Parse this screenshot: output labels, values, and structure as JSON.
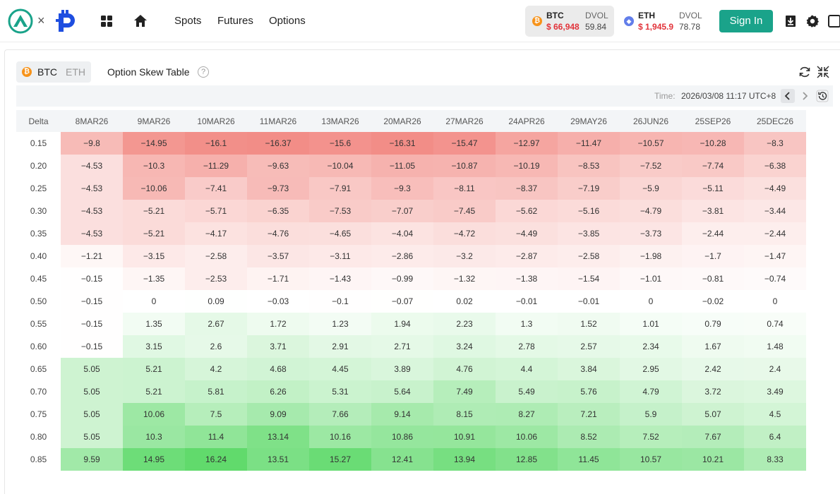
{
  "nav": {
    "logo_separator": "×",
    "links": [
      "Spots",
      "Futures",
      "Options"
    ],
    "sign_in": "Sign In"
  },
  "tickers": [
    {
      "symbol": "BTC",
      "price": "$ 66,948",
      "dvol_label": "DVOL",
      "dvol": "59.84",
      "coin_color": "#f7931a",
      "coin_glyph": "₿"
    },
    {
      "symbol": "ETH",
      "price": "$ 1,945.9",
      "dvol_label": "DVOL",
      "dvol": "78.78",
      "coin_color": "#627eea",
      "coin_glyph": "◆"
    }
  ],
  "panel": {
    "coin_active": "BTC",
    "coin_inactive": "ETH",
    "title": "Option Skew Table",
    "help_glyph": "?",
    "time_label": "Time:",
    "time_value": "2026/03/08 11:17 UTC+8"
  },
  "colors": {
    "brand": "#1aa38a",
    "price_red": "#e2333a",
    "neg_heat": "#f28c86",
    "pos_heat": "#5ed96a"
  },
  "table": {
    "corner": "Delta",
    "expiries": [
      "8MAR26",
      "9MAR26",
      "10MAR26",
      "11MAR26",
      "13MAR26",
      "20MAR26",
      "27MAR26",
      "24APR26",
      "29MAY26",
      "26JUN26",
      "25SEP26",
      "25DEC26"
    ],
    "rows": [
      {
        "delta": "0.15",
        "values": [
          -9.8,
          -14.95,
          -16.1,
          -16.37,
          -15.6,
          -16.31,
          -15.47,
          -12.97,
          -11.47,
          -10.57,
          -10.28,
          -8.3
        ]
      },
      {
        "delta": "0.20",
        "values": [
          -4.53,
          -10.3,
          -11.29,
          -9.63,
          -10.04,
          -11.05,
          -10.87,
          -10.19,
          -8.53,
          -7.52,
          -7.74,
          -6.38
        ]
      },
      {
        "delta": "0.25",
        "values": [
          -4.53,
          -10.06,
          -7.41,
          -9.73,
          -7.91,
          -9.3,
          -8.11,
          -8.37,
          -7.19,
          -5.9,
          -5.11,
          -4.49
        ]
      },
      {
        "delta": "0.30",
        "values": [
          -4.53,
          -5.21,
          -5.71,
          -6.35,
          -7.53,
          -7.07,
          -7.45,
          -5.62,
          -5.16,
          -4.79,
          -3.81,
          -3.44
        ]
      },
      {
        "delta": "0.35",
        "values": [
          -4.53,
          -5.21,
          -4.17,
          -4.76,
          -4.65,
          -4.04,
          -4.72,
          -4.49,
          -3.85,
          -3.73,
          -2.44,
          -2.44
        ]
      },
      {
        "delta": "0.40",
        "values": [
          -1.21,
          -3.15,
          -2.58,
          -3.57,
          -3.11,
          -2.86,
          -3.2,
          -2.87,
          -2.58,
          -1.98,
          -1.7,
          -1.47
        ]
      },
      {
        "delta": "0.45",
        "values": [
          -0.15,
          -1.35,
          -2.53,
          -1.71,
          -1.43,
          -0.99,
          -1.32,
          -1.38,
          -1.54,
          -1.01,
          -0.81,
          -0.74
        ]
      },
      {
        "delta": "0.50",
        "values": [
          -0.15,
          0,
          0.09,
          -0.03,
          -0.1,
          -0.07,
          0.02,
          -0.01,
          -0.01,
          0,
          -0.02,
          0
        ]
      },
      {
        "delta": "0.55",
        "values": [
          -0.15,
          1.35,
          2.67,
          1.72,
          1.23,
          1.94,
          2.23,
          1.3,
          1.52,
          1.01,
          0.79,
          0.74
        ]
      },
      {
        "delta": "0.60",
        "values": [
          -0.15,
          3.15,
          2.6,
          3.71,
          2.91,
          2.71,
          3.24,
          2.78,
          2.57,
          2.34,
          1.67,
          1.48
        ]
      },
      {
        "delta": "0.65",
        "values": [
          5.05,
          5.21,
          4.2,
          4.68,
          4.45,
          3.89,
          4.76,
          4.4,
          3.84,
          2.95,
          2.42,
          2.4
        ]
      },
      {
        "delta": "0.70",
        "values": [
          5.05,
          5.21,
          5.81,
          6.26,
          5.31,
          5.64,
          7.49,
          5.49,
          5.76,
          4.79,
          3.72,
          3.49
        ]
      },
      {
        "delta": "0.75",
        "values": [
          5.05,
          10.06,
          7.5,
          9.09,
          7.66,
          9.14,
          8.15,
          8.27,
          7.21,
          5.9,
          5.07,
          4.5
        ]
      },
      {
        "delta": "0.80",
        "values": [
          5.05,
          10.3,
          11.4,
          13.14,
          10.16,
          10.86,
          10.91,
          10.06,
          8.52,
          7.52,
          7.67,
          6.4
        ]
      },
      {
        "delta": "0.85",
        "values": [
          9.59,
          14.95,
          16.24,
          13.51,
          15.27,
          12.41,
          13.94,
          12.85,
          11.45,
          10.57,
          10.21,
          8.33
        ]
      }
    ]
  }
}
